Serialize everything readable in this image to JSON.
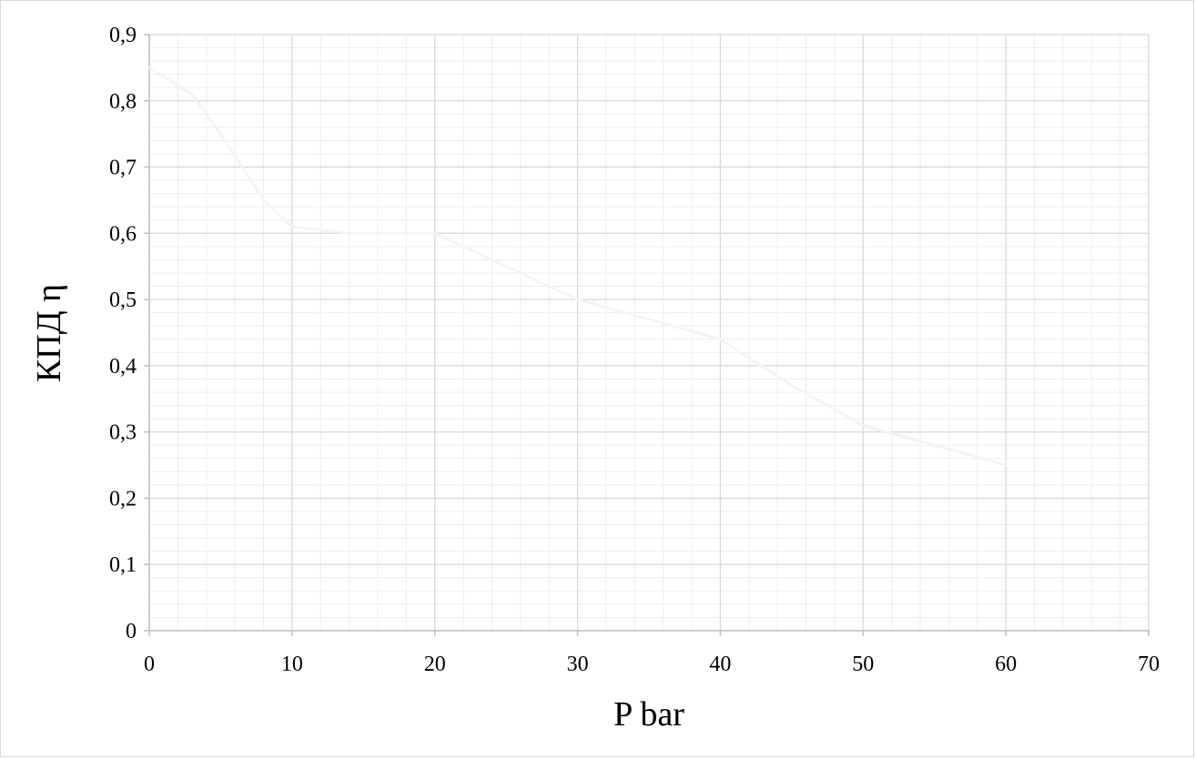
{
  "chart_data": {
    "type": "line",
    "xlabel": "P bar",
    "ylabel": "КПД η",
    "xlim": [
      0,
      70
    ],
    "ylim": [
      0,
      0.9
    ],
    "x_ticks": [
      "0",
      "10",
      "20",
      "30",
      "40",
      "50",
      "60",
      "70"
    ],
    "y_ticks": [
      "0",
      "0,1",
      "0,2",
      "0,3",
      "0,4",
      "0,5",
      "0,6",
      "0,7",
      "0,8",
      "0,9"
    ],
    "grid": true,
    "series": [
      {
        "color": "#f4f4f4",
        "x": [
          0,
          3,
          5,
          8,
          10,
          14,
          20,
          25,
          30,
          35,
          40,
          45,
          50,
          55,
          60
        ],
        "y": [
          0.85,
          0.81,
          0.75,
          0.65,
          0.61,
          0.6,
          0.6,
          0.55,
          0.5,
          0.47,
          0.44,
          0.37,
          0.31,
          0.28,
          0.25
        ]
      }
    ]
  },
  "colors": {
    "major_grid": "#d9d9d9",
    "minor_grid": "#eeeeee",
    "axis": "#bfbfbf"
  }
}
